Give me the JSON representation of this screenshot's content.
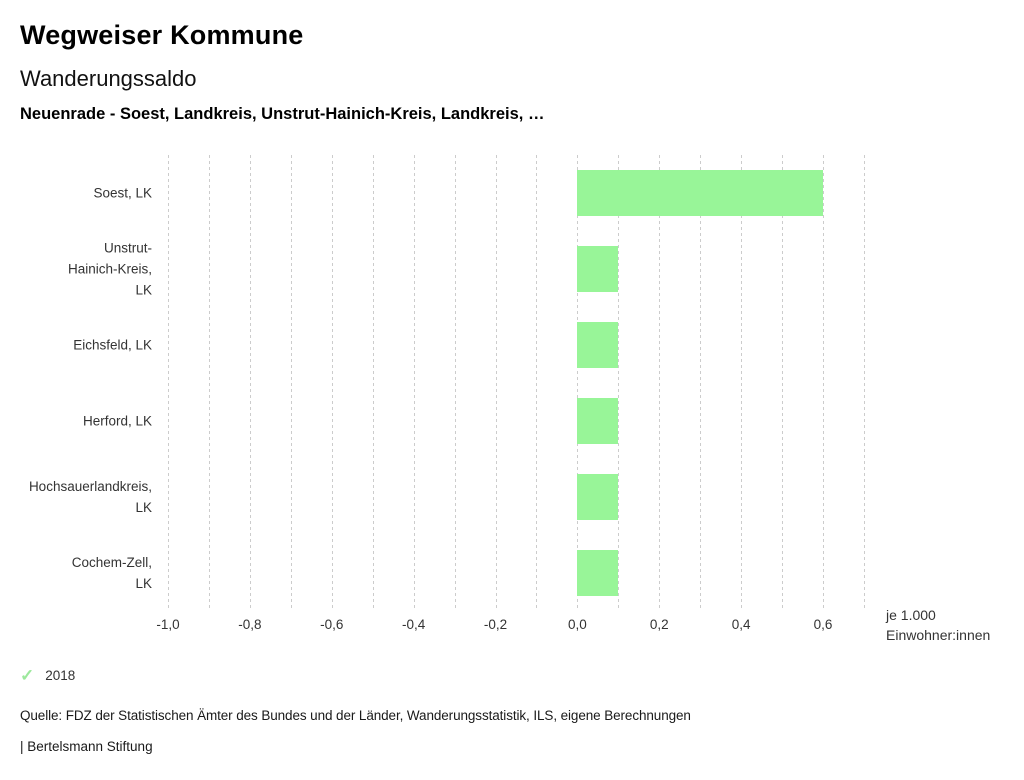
{
  "header": {
    "title": "Wegweiser Kommune",
    "subtitle": "Wanderungssaldo",
    "selection": "Neuenrade - Soest, Landkreis, Unstrut-Hainich-Kreis, Landkreis, …"
  },
  "chart_data": {
    "type": "bar",
    "orientation": "horizontal",
    "title": "Wanderungssaldo",
    "categories": [
      "Soest, LK",
      "Unstrut-Hainich-Kreis, LK",
      "Eichsfeld, LK",
      "Herford, LK",
      "Hochsauerlandkreis, LK",
      "Cochem-Zell, LK"
    ],
    "category_label_lines": [
      [
        "Soest, LK"
      ],
      [
        "Unstrut-",
        "Hainich-Kreis,",
        "LK"
      ],
      [
        "Eichsfeld, LK"
      ],
      [
        "Herford, LK"
      ],
      [
        "Hochsauerlandkreis,",
        "LK"
      ],
      [
        "Cochem-Zell,",
        "LK"
      ]
    ],
    "series": [
      {
        "name": "2018",
        "values": [
          0.6,
          0.1,
          0.1,
          0.1,
          0.1,
          0.1
        ]
      }
    ],
    "xlim": [
      -1.0,
      0.7
    ],
    "gridline_step": 0.1,
    "tick_values": [
      -1.0,
      -0.8,
      -0.6,
      -0.4,
      -0.2,
      0.0,
      0.2,
      0.4,
      0.6
    ],
    "tick_labels": [
      "-1,0",
      "-0,8",
      "-0,6",
      "-0,4",
      "-0,2",
      "0,0",
      "0,2",
      "0,4",
      "0,6"
    ],
    "xlabel": "je 1.000 Einwohner:innen",
    "xlabel_lines": [
      "je 1.000",
      "Einwohner:innen"
    ],
    "bar_color": "#98f598",
    "grid_color": "#cccccc",
    "grid": true,
    "legend_position": "bottom-left"
  },
  "legend": {
    "year": "2018",
    "check_color": "#9ce89c"
  },
  "footer": {
    "source": "Quelle: FDZ der Statistischen Ämter des Bundes und der Länder, Wanderungsstatistik, ILS, eigene Berechnungen",
    "brand": "| Bertelsmann Stiftung"
  }
}
